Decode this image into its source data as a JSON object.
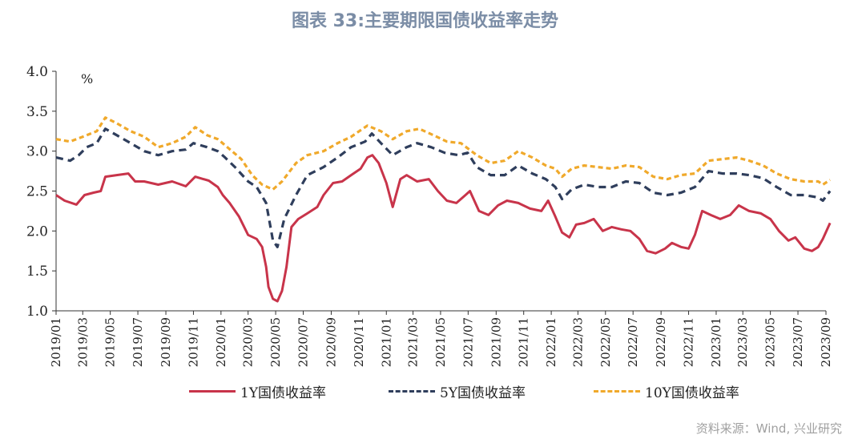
{
  "page": {
    "title": "图表 33:主要期限国债收益率走势",
    "source": "资料来源：Wind, 兴业研究"
  },
  "chart_data": {
    "type": "line",
    "title": "图表 33:主要期限国债收益率走势",
    "ylabel": "%",
    "ylim": [
      1.0,
      4.0
    ],
    "yticks": [
      "1.0",
      "1.5",
      "2.0",
      "2.5",
      "3.0",
      "3.5",
      "4.0"
    ],
    "xlim": [
      "2019-01",
      "2023-09"
    ],
    "xticks": [
      "2019/01",
      "2019/03",
      "2019/05",
      "2019/07",
      "2019/09",
      "2019/11",
      "2020/01",
      "2020/03",
      "2020/05",
      "2020/07",
      "2020/09",
      "2020/11",
      "2021/01",
      "2021/03",
      "2021/05",
      "2021/07",
      "2021/09",
      "2021/11",
      "2022/01",
      "2022/03",
      "2022/05",
      "2022/07",
      "2022/09",
      "2022/11",
      "2023/01",
      "2023/03",
      "2023/05",
      "2023/07",
      "2023/09"
    ],
    "grid": false,
    "legend": "bottom",
    "series": [
      {
        "name": "1Y国债收益率",
        "color": "#c8344a",
        "style": "solid",
        "points": [
          [
            "2019-01-01",
            2.45
          ],
          [
            "2019-01-20",
            2.38
          ],
          [
            "2019-02-15",
            2.33
          ],
          [
            "2019-03-05",
            2.45
          ],
          [
            "2019-03-25",
            2.48
          ],
          [
            "2019-04-10",
            2.5
          ],
          [
            "2019-04-20",
            2.68
          ],
          [
            "2019-05-15",
            2.7
          ],
          [
            "2019-06-10",
            2.72
          ],
          [
            "2019-06-25",
            2.62
          ],
          [
            "2019-07-15",
            2.62
          ],
          [
            "2019-08-15",
            2.58
          ],
          [
            "2019-09-15",
            2.62
          ],
          [
            "2019-10-15",
            2.56
          ],
          [
            "2019-11-05",
            2.68
          ],
          [
            "2019-12-05",
            2.63
          ],
          [
            "2019-12-25",
            2.55
          ],
          [
            "2020-01-05",
            2.45
          ],
          [
            "2020-01-20",
            2.35
          ],
          [
            "2020-02-10",
            2.18
          ],
          [
            "2020-03-01",
            1.95
          ],
          [
            "2020-03-20",
            1.9
          ],
          [
            "2020-04-01",
            1.8
          ],
          [
            "2020-04-10",
            1.55
          ],
          [
            "2020-04-15",
            1.3
          ],
          [
            "2020-04-25",
            1.15
          ],
          [
            "2020-05-05",
            1.12
          ],
          [
            "2020-05-15",
            1.25
          ],
          [
            "2020-05-25",
            1.55
          ],
          [
            "2020-06-05",
            2.05
          ],
          [
            "2020-06-20",
            2.15
          ],
          [
            "2020-07-10",
            2.22
          ],
          [
            "2020-08-01",
            2.3
          ],
          [
            "2020-08-15",
            2.45
          ],
          [
            "2020-09-05",
            2.6
          ],
          [
            "2020-09-25",
            2.62
          ],
          [
            "2020-10-15",
            2.7
          ],
          [
            "2020-11-05",
            2.78
          ],
          [
            "2020-11-20",
            2.92
          ],
          [
            "2020-12-01",
            2.95
          ],
          [
            "2020-12-15",
            2.85
          ],
          [
            "2021-01-01",
            2.6
          ],
          [
            "2021-01-15",
            2.3
          ],
          [
            "2021-02-01",
            2.65
          ],
          [
            "2021-02-15",
            2.7
          ],
          [
            "2021-03-10",
            2.62
          ],
          [
            "2021-04-05",
            2.65
          ],
          [
            "2021-04-25",
            2.5
          ],
          [
            "2021-05-15",
            2.38
          ],
          [
            "2021-06-05",
            2.35
          ],
          [
            "2021-06-25",
            2.45
          ],
          [
            "2021-07-05",
            2.5
          ],
          [
            "2021-07-25",
            2.25
          ],
          [
            "2021-08-15",
            2.2
          ],
          [
            "2021-09-05",
            2.32
          ],
          [
            "2021-09-25",
            2.38
          ],
          [
            "2021-10-20",
            2.35
          ],
          [
            "2021-11-15",
            2.28
          ],
          [
            "2021-12-10",
            2.25
          ],
          [
            "2021-12-25",
            2.38
          ],
          [
            "2022-01-10",
            2.18
          ],
          [
            "2022-01-25",
            1.98
          ],
          [
            "2022-02-10",
            1.92
          ],
          [
            "2022-02-25",
            2.08
          ],
          [
            "2022-03-15",
            2.1
          ],
          [
            "2022-04-05",
            2.15
          ],
          [
            "2022-04-25",
            2.0
          ],
          [
            "2022-05-15",
            2.05
          ],
          [
            "2022-06-05",
            2.02
          ],
          [
            "2022-06-25",
            2.0
          ],
          [
            "2022-07-15",
            1.9
          ],
          [
            "2022-08-01",
            1.75
          ],
          [
            "2022-08-20",
            1.72
          ],
          [
            "2022-09-10",
            1.78
          ],
          [
            "2022-09-25",
            1.85
          ],
          [
            "2022-10-15",
            1.8
          ],
          [
            "2022-11-01",
            1.78
          ],
          [
            "2022-11-15",
            1.95
          ],
          [
            "2022-12-01",
            2.25
          ],
          [
            "2022-12-20",
            2.2
          ],
          [
            "2023-01-10",
            2.15
          ],
          [
            "2023-02-01",
            2.2
          ],
          [
            "2023-02-20",
            2.32
          ],
          [
            "2023-03-15",
            2.25
          ],
          [
            "2023-04-10",
            2.22
          ],
          [
            "2023-05-01",
            2.15
          ],
          [
            "2023-05-20",
            2.0
          ],
          [
            "2023-06-10",
            1.88
          ],
          [
            "2023-06-25",
            1.92
          ],
          [
            "2023-07-15",
            1.78
          ],
          [
            "2023-08-01",
            1.75
          ],
          [
            "2023-08-15",
            1.8
          ],
          [
            "2023-08-25",
            1.9
          ],
          [
            "2023-09-10",
            2.1
          ]
        ]
      },
      {
        "name": "5Y国债收益率",
        "color": "#2f3e5c",
        "style": "dashed",
        "points": [
          [
            "2019-01-01",
            2.92
          ],
          [
            "2019-02-01",
            2.88
          ],
          [
            "2019-02-20",
            2.95
          ],
          [
            "2019-03-10",
            3.05
          ],
          [
            "2019-04-01",
            3.1
          ],
          [
            "2019-04-20",
            3.28
          ],
          [
            "2019-05-15",
            3.2
          ],
          [
            "2019-06-15",
            3.1
          ],
          [
            "2019-07-15",
            3.0
          ],
          [
            "2019-08-15",
            2.95
          ],
          [
            "2019-09-15",
            3.0
          ],
          [
            "2019-10-15",
            3.02
          ],
          [
            "2019-11-01",
            3.1
          ],
          [
            "2019-12-01",
            3.05
          ],
          [
            "2019-12-25",
            3.0
          ],
          [
            "2020-01-10",
            2.92
          ],
          [
            "2020-02-01",
            2.8
          ],
          [
            "2020-03-01",
            2.62
          ],
          [
            "2020-03-20",
            2.55
          ],
          [
            "2020-04-10",
            2.35
          ],
          [
            "2020-04-25",
            1.88
          ],
          [
            "2020-05-05",
            1.8
          ],
          [
            "2020-05-20",
            2.15
          ],
          [
            "2020-06-15",
            2.45
          ],
          [
            "2020-07-10",
            2.7
          ],
          [
            "2020-08-15",
            2.8
          ],
          [
            "2020-09-15",
            2.92
          ],
          [
            "2020-10-15",
            3.05
          ],
          [
            "2020-11-15",
            3.12
          ],
          [
            "2020-11-30",
            3.22
          ],
          [
            "2020-12-20",
            3.1
          ],
          [
            "2021-01-15",
            2.95
          ],
          [
            "2021-02-15",
            3.05
          ],
          [
            "2021-03-10",
            3.1
          ],
          [
            "2021-04-10",
            3.05
          ],
          [
            "2021-05-10",
            2.98
          ],
          [
            "2021-06-10",
            2.95
          ],
          [
            "2021-06-30",
            2.98
          ],
          [
            "2021-07-20",
            2.8
          ],
          [
            "2021-08-20",
            2.7
          ],
          [
            "2021-09-20",
            2.7
          ],
          [
            "2021-10-20",
            2.82
          ],
          [
            "2021-11-20",
            2.72
          ],
          [
            "2021-12-20",
            2.65
          ],
          [
            "2022-01-10",
            2.55
          ],
          [
            "2022-01-25",
            2.4
          ],
          [
            "2022-02-15",
            2.52
          ],
          [
            "2022-03-15",
            2.58
          ],
          [
            "2022-04-15",
            2.55
          ],
          [
            "2022-05-15",
            2.55
          ],
          [
            "2022-06-15",
            2.62
          ],
          [
            "2022-07-15",
            2.6
          ],
          [
            "2022-08-15",
            2.48
          ],
          [
            "2022-09-15",
            2.45
          ],
          [
            "2022-10-15",
            2.48
          ],
          [
            "2022-11-15",
            2.55
          ],
          [
            "2022-12-15",
            2.75
          ],
          [
            "2023-01-15",
            2.72
          ],
          [
            "2023-02-15",
            2.72
          ],
          [
            "2023-03-15",
            2.7
          ],
          [
            "2023-04-15",
            2.66
          ],
          [
            "2023-05-15",
            2.55
          ],
          [
            "2023-06-15",
            2.45
          ],
          [
            "2023-07-15",
            2.45
          ],
          [
            "2023-08-15",
            2.42
          ],
          [
            "2023-08-25",
            2.38
          ],
          [
            "2023-09-10",
            2.5
          ]
        ]
      },
      {
        "name": "10Y国债收益率",
        "color": "#f0a92b",
        "style": "dashed",
        "points": [
          [
            "2019-01-01",
            3.15
          ],
          [
            "2019-02-01",
            3.12
          ],
          [
            "2019-03-01",
            3.18
          ],
          [
            "2019-04-01",
            3.25
          ],
          [
            "2019-04-20",
            3.42
          ],
          [
            "2019-05-15",
            3.35
          ],
          [
            "2019-06-15",
            3.25
          ],
          [
            "2019-07-15",
            3.18
          ],
          [
            "2019-08-15",
            3.05
          ],
          [
            "2019-09-15",
            3.1
          ],
          [
            "2019-10-15",
            3.18
          ],
          [
            "2019-11-05",
            3.3
          ],
          [
            "2019-12-01",
            3.2
          ],
          [
            "2019-12-25",
            3.15
          ],
          [
            "2020-01-15",
            3.05
          ],
          [
            "2020-02-15",
            2.9
          ],
          [
            "2020-03-10",
            2.7
          ],
          [
            "2020-04-01",
            2.58
          ],
          [
            "2020-04-25",
            2.52
          ],
          [
            "2020-05-15",
            2.62
          ],
          [
            "2020-06-15",
            2.85
          ],
          [
            "2020-07-10",
            2.95
          ],
          [
            "2020-08-15",
            3.0
          ],
          [
            "2020-09-15",
            3.1
          ],
          [
            "2020-10-15",
            3.18
          ],
          [
            "2020-11-20",
            3.32
          ],
          [
            "2020-12-20",
            3.25
          ],
          [
            "2021-01-15",
            3.15
          ],
          [
            "2021-02-15",
            3.25
          ],
          [
            "2021-03-15",
            3.28
          ],
          [
            "2021-04-15",
            3.2
          ],
          [
            "2021-05-15",
            3.12
          ],
          [
            "2021-06-15",
            3.1
          ],
          [
            "2021-07-20",
            2.95
          ],
          [
            "2021-08-20",
            2.85
          ],
          [
            "2021-09-20",
            2.88
          ],
          [
            "2021-10-20",
            3.0
          ],
          [
            "2021-11-20",
            2.92
          ],
          [
            "2021-12-20",
            2.82
          ],
          [
            "2022-01-10",
            2.78
          ],
          [
            "2022-01-25",
            2.68
          ],
          [
            "2022-02-15",
            2.78
          ],
          [
            "2022-03-15",
            2.82
          ],
          [
            "2022-04-15",
            2.8
          ],
          [
            "2022-05-15",
            2.78
          ],
          [
            "2022-06-15",
            2.82
          ],
          [
            "2022-07-15",
            2.8
          ],
          [
            "2022-08-15",
            2.68
          ],
          [
            "2022-09-15",
            2.65
          ],
          [
            "2022-10-15",
            2.7
          ],
          [
            "2022-11-15",
            2.72
          ],
          [
            "2022-12-15",
            2.88
          ],
          [
            "2023-01-15",
            2.9
          ],
          [
            "2023-02-15",
            2.92
          ],
          [
            "2023-03-15",
            2.88
          ],
          [
            "2023-04-15",
            2.82
          ],
          [
            "2023-05-15",
            2.72
          ],
          [
            "2023-06-15",
            2.65
          ],
          [
            "2023-07-15",
            2.62
          ],
          [
            "2023-08-15",
            2.62
          ],
          [
            "2023-08-25",
            2.58
          ],
          [
            "2023-09-10",
            2.64
          ]
        ]
      }
    ]
  }
}
